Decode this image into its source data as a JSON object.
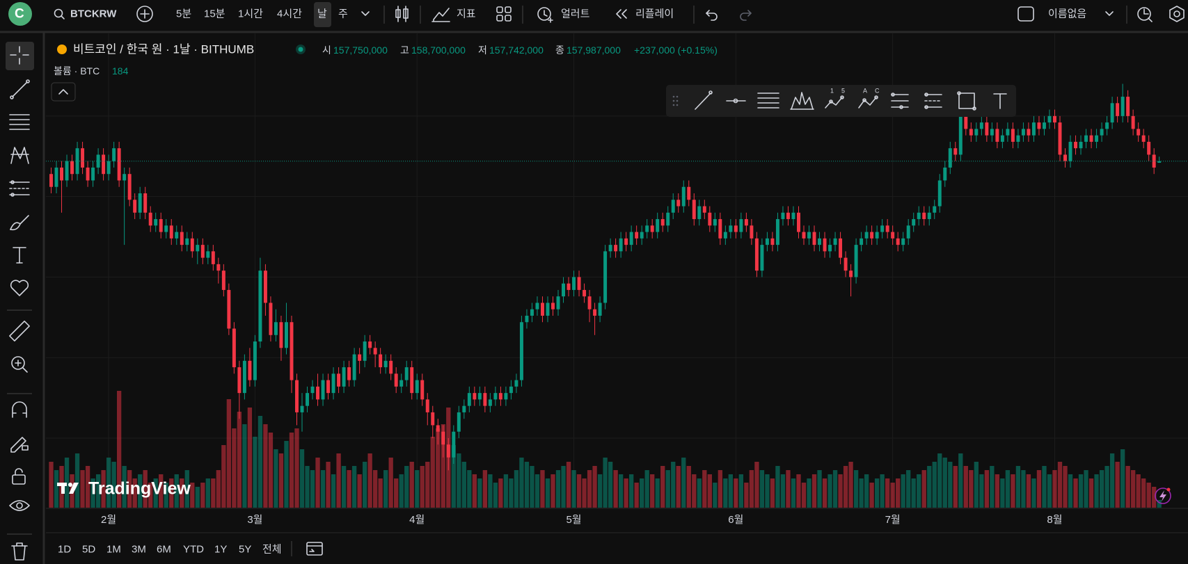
{
  "top_bar": {
    "avatar": "C",
    "symbol": "BTCKRW",
    "intervals": [
      "5분",
      "15분",
      "1시간",
      "4시간",
      "날",
      "주"
    ],
    "indicators": "지표",
    "alert": "얼러트",
    "replay": "리플레이",
    "layout_name": "이름없음"
  },
  "legend": {
    "title": "비트코인 / 한국 원 · 1날 · BITHUMB",
    "open_label": "시",
    "open": "157,750,000",
    "high_label": "고",
    "high": "158,700,000",
    "low_label": "저",
    "low": "157,742,000",
    "close_label": "종",
    "close": "157,987,000",
    "change": "+237,000 (+0.15%)",
    "volume_label": "볼륨 · BTC"
  },
  "floating_toolbar": {
    "labels": [
      "1",
      "5",
      "A",
      "C"
    ]
  },
  "watermark": "TradingView",
  "range_bar": [
    "1D",
    "5D",
    "1M",
    "3M",
    "6M",
    "YTD",
    "1Y",
    "5Y",
    "전체"
  ],
  "chart_data": {
    "type": "candlestick",
    "up_color": "#089981",
    "down_color": "#f23645",
    "price_line": true,
    "xlim": [
      -1,
      217.5
    ],
    "ylim": [
      104.2,
      177.4
    ],
    "vlim": [
      0,
      4000
    ],
    "grid_y": [
      115,
      127.5,
      140,
      152.5,
      165
    ],
    "xticks": [
      {
        "value": 11,
        "label": "2월"
      },
      {
        "value": 39,
        "label": "3월"
      },
      {
        "value": 70,
        "label": "4월"
      },
      {
        "value": 100,
        "label": "5월"
      },
      {
        "value": 131,
        "label": "6월"
      },
      {
        "value": 161,
        "label": "7월"
      },
      {
        "value": 192,
        "label": "8월"
      }
    ],
    "open": [
      156,
      154,
      157,
      155,
      158,
      156,
      160,
      157,
      155,
      157,
      159,
      156,
      158,
      160,
      155,
      156,
      152,
      150,
      153,
      150,
      148,
      149,
      147,
      148,
      146,
      147,
      145,
      146,
      144,
      145,
      143,
      144,
      142,
      141,
      138,
      132,
      126,
      122,
      127,
      124,
      130,
      141,
      136,
      131,
      133,
      129,
      133,
      124,
      119,
      120,
      122,
      123,
      121,
      124,
      122,
      125,
      123,
      126,
      124,
      128,
      127,
      130,
      129,
      128,
      126,
      127,
      125,
      123,
      124,
      126,
      122,
      124,
      121,
      119,
      117,
      116,
      114,
      112,
      116,
      119,
      120,
      122,
      121,
      122,
      120,
      121,
      122,
      121,
      122,
      123,
      124,
      133,
      134,
      135,
      136,
      134,
      136,
      135,
      137,
      139,
      138,
      140,
      138,
      137,
      135,
      134,
      136,
      144,
      145,
      144,
      146,
      145,
      147,
      146,
      147,
      148,
      147,
      149,
      148,
      150,
      152,
      151,
      154,
      152,
      149,
      151,
      150,
      148,
      149,
      146,
      147,
      148,
      147,
      149,
      148,
      146,
      141,
      145,
      146,
      145,
      149,
      150,
      149,
      150,
      147,
      146,
      147,
      145,
      146,
      144,
      145,
      146,
      143,
      141,
      140,
      145,
      146,
      147,
      146,
      147,
      148,
      147,
      146,
      145,
      146,
      148,
      149,
      150,
      149,
      150,
      151,
      155,
      157,
      160,
      159,
      165,
      163,
      162,
      163,
      164,
      162,
      163,
      161,
      162,
      163,
      161,
      162,
      163,
      162,
      164,
      163,
      164,
      165,
      164,
      159,
      158,
      161,
      160,
      161,
      162,
      161,
      162,
      163,
      164,
      167,
      165,
      168,
      165,
      163,
      162,
      161,
      159,
      157.75
    ],
    "high": [
      157,
      158,
      158,
      159,
      159,
      161,
      161,
      158,
      158,
      160,
      160,
      159,
      161,
      161,
      157,
      157,
      153,
      154,
      154,
      151,
      150,
      150,
      149,
      149,
      148,
      148,
      147,
      147,
      146,
      146,
      145,
      145,
      143,
      142,
      139,
      133,
      127,
      128,
      129,
      131,
      143,
      142,
      137,
      135,
      134,
      136,
      134,
      125,
      122,
      123,
      124,
      125,
      125,
      125,
      126,
      126,
      127,
      127,
      129,
      129,
      131,
      131,
      130,
      129,
      128,
      128,
      126,
      125,
      127,
      127,
      125,
      125,
      122,
      120,
      118,
      117,
      115,
      117,
      120,
      121,
      123,
      123,
      123,
      123,
      122,
      123,
      123,
      123,
      124,
      125,
      134,
      135,
      136,
      137,
      137,
      137,
      137,
      138,
      140,
      140,
      141,
      141,
      139,
      138,
      136,
      137,
      145,
      146,
      146,
      147,
      147,
      148,
      148,
      148,
      149,
      149,
      150,
      150,
      151,
      153,
      153,
      155,
      155,
      153,
      152,
      152,
      151,
      150,
      150,
      148,
      149,
      149,
      150,
      150,
      149,
      147,
      146,
      147,
      147,
      150,
      151,
      151,
      151,
      151,
      148,
      148,
      148,
      147,
      147,
      146,
      147,
      147,
      144,
      142,
      146,
      147,
      148,
      148,
      148,
      149,
      149,
      148,
      147,
      147,
      149,
      150,
      151,
      151,
      151,
      152,
      156,
      158,
      161,
      161,
      166,
      166,
      164,
      164,
      165,
      165,
      164,
      164,
      163,
      164,
      164,
      163,
      164,
      164,
      165,
      165,
      165,
      166,
      166,
      165,
      160,
      162,
      162,
      162,
      163,
      163,
      163,
      164,
      165,
      168,
      168,
      170,
      169,
      166,
      164,
      163,
      162,
      160,
      158.7
    ],
    "low": [
      153,
      153,
      150,
      154,
      155,
      155,
      156,
      154,
      154,
      156,
      155,
      155,
      157,
      154,
      145,
      151,
      149,
      149,
      149,
      147,
      147,
      146,
      146,
      145,
      145,
      144,
      144,
      143,
      142,
      142,
      142,
      141,
      139,
      137,
      131,
      125,
      118,
      121,
      123,
      123,
      129,
      134,
      130,
      130,
      127,
      128,
      122,
      117,
      116,
      119,
      121,
      120,
      120,
      121,
      121,
      122,
      122,
      123,
      123,
      125,
      126,
      128,
      126,
      125,
      125,
      124,
      122,
      122,
      123,
      121,
      121,
      120,
      117,
      115,
      114,
      112,
      110,
      111,
      115,
      118,
      119,
      120,
      120,
      119,
      119,
      120,
      120,
      120,
      121,
      122,
      123,
      132,
      133,
      134,
      133,
      133,
      134,
      134,
      136,
      137,
      137,
      137,
      136,
      133,
      131,
      133,
      135,
      143,
      143,
      143,
      144,
      144,
      145,
      145,
      146,
      146,
      146,
      147,
      147,
      149,
      150,
      150,
      151,
      148,
      148,
      149,
      147,
      147,
      145,
      145,
      146,
      146,
      146,
      147,
      145,
      140,
      140,
      144,
      144,
      144,
      148,
      148,
      148,
      146,
      145,
      145,
      144,
      144,
      143,
      143,
      144,
      142,
      140,
      137,
      139,
      144,
      145,
      145,
      145,
      146,
      146,
      145,
      144,
      144,
      145,
      147,
      148,
      148,
      148,
      149,
      150,
      154,
      156,
      158,
      158,
      162,
      161,
      161,
      162,
      161,
      161,
      160,
      160,
      161,
      160,
      160,
      161,
      161,
      161,
      162,
      162,
      163,
      163,
      158,
      157,
      157,
      159,
      159,
      160,
      160,
      160,
      161,
      162,
      163,
      164,
      164,
      164,
      162,
      161,
      160,
      158,
      156,
      157.742
    ],
    "close": [
      154,
      157,
      155,
      158,
      156,
      160,
      157,
      155,
      157,
      159,
      156,
      158,
      160,
      155,
      156,
      152,
      150,
      153,
      150,
      148,
      149,
      147,
      148,
      146,
      147,
      145,
      146,
      144,
      145,
      143,
      144,
      142,
      141,
      138,
      132,
      126,
      122,
      127,
      124,
      130,
      141,
      136,
      131,
      133,
      129,
      133,
      124,
      119,
      120,
      122,
      123,
      121,
      124,
      122,
      125,
      123,
      126,
      124,
      128,
      127,
      130,
      129,
      128,
      126,
      127,
      125,
      123,
      124,
      126,
      122,
      124,
      121,
      119,
      117,
      116,
      114,
      112,
      116,
      119,
      120,
      122,
      121,
      122,
      120,
      121,
      122,
      121,
      122,
      123,
      124,
      133,
      134,
      135,
      136,
      134,
      136,
      135,
      137,
      139,
      138,
      140,
      138,
      137,
      135,
      134,
      136,
      144,
      145,
      144,
      146,
      145,
      147,
      146,
      147,
      148,
      147,
      149,
      148,
      150,
      152,
      151,
      154,
      152,
      149,
      151,
      150,
      148,
      149,
      146,
      147,
      148,
      147,
      149,
      148,
      146,
      141,
      145,
      146,
      145,
      149,
      150,
      149,
      150,
      147,
      146,
      147,
      145,
      146,
      144,
      145,
      146,
      143,
      141,
      140,
      145,
      146,
      147,
      146,
      147,
      148,
      147,
      146,
      145,
      146,
      148,
      149,
      150,
      149,
      150,
      151,
      155,
      157,
      160,
      159,
      165,
      163,
      162,
      163,
      164,
      162,
      163,
      161,
      162,
      163,
      161,
      162,
      163,
      162,
      164,
      163,
      164,
      165,
      164,
      159,
      158,
      161,
      160,
      161,
      162,
      161,
      162,
      163,
      164,
      167,
      165,
      168,
      165,
      163,
      162,
      161,
      159,
      157,
      157.987
    ],
    "volume": [
      1100,
      900,
      1000,
      1200,
      800,
      1300,
      900,
      1000,
      700,
      800,
      900,
      1200,
      1100,
      2800,
      1000,
      900,
      700,
      800,
      900,
      600,
      700,
      800,
      600,
      700,
      800,
      700,
      900,
      600,
      500,
      600,
      700,
      700,
      900,
      1500,
      2600,
      1900,
      2300,
      2000,
      2400,
      1700,
      2200,
      2000,
      1800,
      1400,
      1300,
      1600,
      1800,
      1900,
      1400,
      1000,
      900,
      1200,
      900,
      1100,
      800,
      1300,
      1000,
      900,
      1000,
      800,
      1100,
      1300,
      900,
      700,
      900,
      1200,
      700,
      800,
      1000,
      1100,
      900,
      1000,
      1100,
      1700,
      1900,
      2000,
      2400,
      1500,
      1300,
      1100,
      900,
      800,
      700,
      900,
      800,
      600,
      700,
      800,
      700,
      900,
      1200,
      1100,
      1000,
      800,
      900,
      700,
      800,
      900,
      1000,
      1100,
      900,
      800,
      700,
      900,
      1000,
      800,
      1200,
      1100,
      900,
      800,
      700,
      800,
      600,
      700,
      900,
      800,
      700,
      1000,
      900,
      1100,
      1000,
      1200,
      1000,
      800,
      700,
      900,
      800,
      600,
      900,
      700,
      800,
      700,
      800,
      600,
      900,
      1100,
      900,
      800,
      700,
      1000,
      800,
      900,
      700,
      800,
      600,
      700,
      800,
      900,
      700,
      800,
      900,
      800,
      1000,
      1100,
      900,
      700,
      800,
      600,
      700,
      800,
      700,
      600,
      700,
      800,
      900,
      700,
      800,
      900,
      1000,
      1100,
      1300,
      1200,
      1100,
      1000,
      1300,
      1000,
      900,
      1100,
      800,
      900,
      1000,
      800,
      700,
      900,
      800,
      1000,
      900,
      800,
      700,
      900,
      1000,
      800,
      900,
      1100,
      1000,
      800,
      700,
      800,
      900,
      700,
      800,
      900,
      1000,
      1300,
      1100,
      1400,
      1000,
      900,
      800,
      700,
      600,
      500,
      184
    ]
  }
}
